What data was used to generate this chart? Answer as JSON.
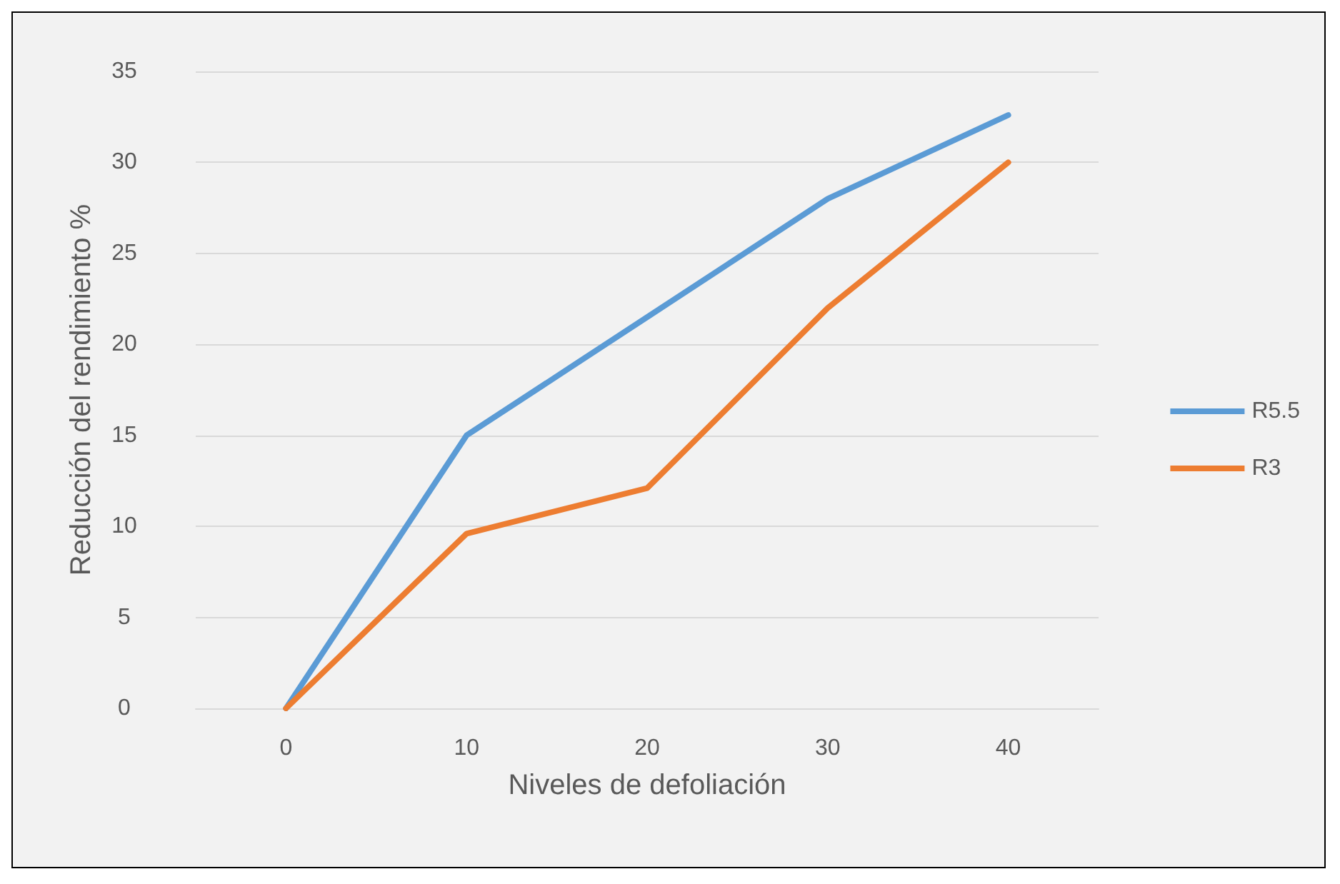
{
  "chart_data": {
    "type": "line",
    "xlabel": "Niveles de defoliación",
    "ylabel": "Reducción del rendimiento %",
    "categories": [
      "0",
      "10",
      "20",
      "30",
      "40"
    ],
    "series": [
      {
        "name": "R5.5",
        "color": "#5b9bd5",
        "values": [
          0,
          15,
          21.5,
          28,
          32.6
        ]
      },
      {
        "name": "R3",
        "color": "#ed7d31",
        "values": [
          0,
          9.6,
          12.1,
          22,
          30
        ]
      }
    ],
    "ylim": [
      0,
      35
    ],
    "yticks": [
      0,
      5,
      10,
      15,
      20,
      25,
      30,
      35
    ],
    "grid": "y",
    "legend": "right",
    "marker": "none",
    "line_style": "solid"
  }
}
